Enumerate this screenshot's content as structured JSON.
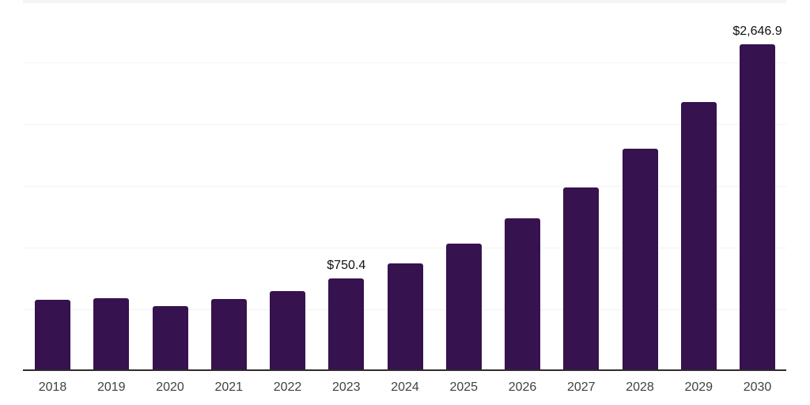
{
  "chart_data": {
    "type": "bar",
    "title": "",
    "categories": [
      "2018",
      "2019",
      "2020",
      "2021",
      "2022",
      "2023",
      "2024",
      "2025",
      "2026",
      "2027",
      "2028",
      "2029",
      "2030"
    ],
    "values": [
      580,
      592,
      525,
      586,
      650,
      750.4,
      875,
      1035,
      1240,
      1490,
      1800,
      2180,
      2646.9
    ],
    "bar_labels": [
      "",
      "",
      "",
      "",
      "",
      "$750.4",
      "",
      "",
      "",
      "",
      "",
      "",
      "$2,646.9"
    ],
    "xlabel": "",
    "ylabel": "",
    "ylim": [
      0,
      3000
    ],
    "gridline_values": [
      500,
      1000,
      1500,
      2000,
      2500,
      3000
    ],
    "grid": "on",
    "legend": "none",
    "unit_prefix": "$"
  },
  "colors": {
    "bar": "#36124e",
    "axis_line": "#2d2d2d",
    "gridline": "#f2f2f2",
    "tick_label": "#414141",
    "data_label": "#111111",
    "background": "#ffffff"
  }
}
